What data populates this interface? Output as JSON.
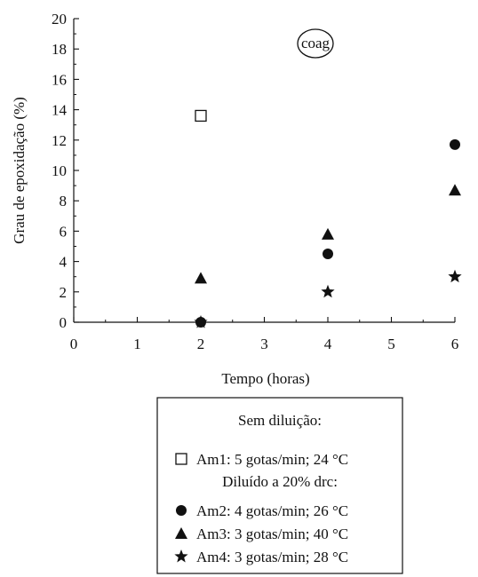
{
  "chart_data": {
    "type": "scatter",
    "xlabel": "Tempo (horas)",
    "ylabel": "Grau de epoxidação (%)",
    "xlim": [
      0,
      6
    ],
    "ylim": [
      0,
      20
    ],
    "xticks": [
      0,
      1,
      2,
      3,
      4,
      5,
      6
    ],
    "yticks": [
      0,
      2,
      4,
      6,
      8,
      10,
      12,
      14,
      16,
      18,
      20
    ],
    "grid": false,
    "legend_position": "bottom",
    "annotation": "coag",
    "legend": {
      "header_1": "Sem diluição:",
      "header_2": "Diluído a 20% drc:"
    },
    "series": [
      {
        "name": "Am1: 5 gotas/min; 24 °C",
        "marker": "open-square",
        "points": [
          {
            "x": 2,
            "y": 13.6
          }
        ]
      },
      {
        "name": "Am2: 4 gotas/min; 26 °C",
        "marker": "filled-circle",
        "points": [
          {
            "x": 2,
            "y": 0
          },
          {
            "x": 4,
            "y": 4.5
          },
          {
            "x": 6,
            "y": 11.7
          }
        ]
      },
      {
        "name": "Am3: 3 gotas/min; 40 °C",
        "marker": "filled-triangle",
        "points": [
          {
            "x": 2,
            "y": 2.9
          },
          {
            "x": 4,
            "y": 5.8
          },
          {
            "x": 6,
            "y": 8.7
          }
        ]
      },
      {
        "name": "Am4: 3 gotas/min; 28 °C",
        "marker": "filled-star",
        "points": [
          {
            "x": 2,
            "y": 0
          },
          {
            "x": 4,
            "y": 2.0
          },
          {
            "x": 6,
            "y": 3.0
          }
        ]
      }
    ]
  }
}
